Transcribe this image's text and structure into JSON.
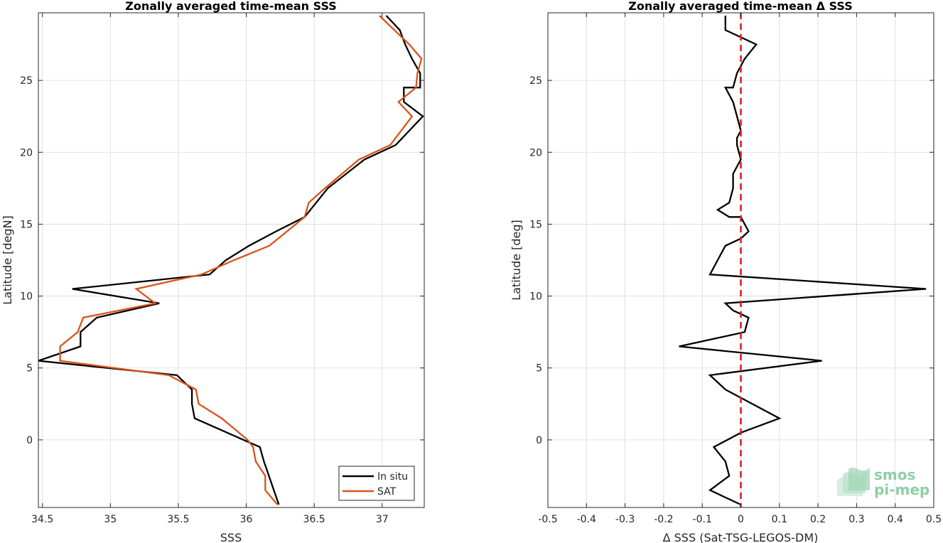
{
  "chart_data": [
    {
      "type": "line",
      "title": "Zonally averaged time-mean SSS",
      "xlabel": "SSS",
      "ylabel": "Latitude [degN]",
      "xlim": [
        34.47,
        37.31
      ],
      "ylim": [
        -4.7,
        29.7
      ],
      "xticks": [
        34.5,
        35,
        35.5,
        36,
        36.5,
        37
      ],
      "xtick_labels": [
        "34.5",
        "35",
        "35.5",
        "36",
        "36.5",
        "37"
      ],
      "yticks": [
        0,
        5,
        10,
        15,
        20,
        25
      ],
      "ytick_labels": [
        "0",
        "5",
        "10",
        "15",
        "20",
        "25"
      ],
      "grid": true,
      "legend_position": "bottom-right",
      "series": [
        {
          "name": "In situ",
          "color": "#000000",
          "points": [
            [
              37.03,
              29.5
            ],
            [
              37.13,
              28.5
            ],
            [
              37.17,
              27.5
            ],
            [
              37.22,
              26.5
            ],
            [
              37.28,
              25.5
            ],
            [
              37.28,
              24.5
            ],
            [
              37.16,
              24.5
            ],
            [
              37.16,
              23.5
            ],
            [
              37.3,
              22.5
            ],
            [
              37.1,
              20.5
            ],
            [
              36.87,
              19.5
            ],
            [
              36.6,
              17.5
            ],
            [
              36.43,
              15.5
            ],
            [
              36.22,
              14.5
            ],
            [
              36.02,
              13.5
            ],
            [
              35.85,
              12.5
            ],
            [
              35.73,
              11.5
            ],
            [
              34.72,
              10.5
            ],
            [
              35.36,
              9.5
            ],
            [
              34.9,
              8.5
            ],
            [
              34.78,
              7.5
            ],
            [
              34.78,
              6.5
            ],
            [
              34.47,
              5.5
            ],
            [
              35.49,
              4.5
            ],
            [
              35.6,
              3.5
            ],
            [
              35.6,
              2.5
            ],
            [
              35.62,
              1.5
            ],
            [
              35.98,
              0
            ],
            [
              36.1,
              -0.5
            ],
            [
              36.13,
              -1.5
            ],
            [
              36.24,
              -4.5
            ]
          ]
        },
        {
          "name": "SAT",
          "color": "#d95319",
          "points": [
            [
              36.98,
              29.5
            ],
            [
              37.09,
              28.5
            ],
            [
              37.2,
              27.5
            ],
            [
              37.29,
              26.5
            ],
            [
              37.26,
              25.5
            ],
            [
              37.25,
              24.5
            ],
            [
              37.12,
              23.5
            ],
            [
              37.22,
              22.5
            ],
            [
              37.06,
              20.5
            ],
            [
              36.83,
              19.5
            ],
            [
              36.58,
              17.5
            ],
            [
              36.46,
              16.5
            ],
            [
              36.43,
              15.5
            ],
            [
              36.17,
              13.5
            ],
            [
              35.91,
              12.5
            ],
            [
              35.67,
              11.5
            ],
            [
              35.19,
              10.5
            ],
            [
              35.33,
              9.5
            ],
            [
              34.8,
              8.5
            ],
            [
              34.76,
              7.5
            ],
            [
              34.63,
              6.5
            ],
            [
              34.63,
              5.5
            ],
            [
              35.43,
              4.5
            ],
            [
              35.63,
              3.5
            ],
            [
              35.65,
              2.5
            ],
            [
              35.82,
              1.5
            ],
            [
              36.01,
              0
            ],
            [
              36.05,
              -0.5
            ],
            [
              36.07,
              -1.5
            ],
            [
              36.14,
              -2.5
            ],
            [
              36.14,
              -3.5
            ],
            [
              36.23,
              -4.5
            ]
          ]
        }
      ]
    },
    {
      "type": "line",
      "title": "Zonally averaged time-mean Δ SSS",
      "xlabel": "Δ SSS (Sat-TSG-LEGOS-DM)",
      "ylabel": "Latitude [deg]",
      "xlim": [
        -0.5,
        0.5
      ],
      "ylim": [
        -4.7,
        29.7
      ],
      "xticks": [
        -0.5,
        -0.4,
        -0.3,
        -0.2,
        -0.1,
        0,
        0.1,
        0.2,
        0.3,
        0.4,
        0.5
      ],
      "xtick_labels": [
        "-0.5",
        "-0.4",
        "-0.3",
        "-0.2",
        "-0.1",
        "0",
        "0.1",
        "0.2",
        "0.3",
        "0.4",
        "0.5"
      ],
      "yticks": [
        0,
        5,
        10,
        15,
        20,
        25
      ],
      "ytick_labels": [
        "0",
        "5",
        "10",
        "15",
        "20",
        "25"
      ],
      "grid": true,
      "reference_line": {
        "x": 0,
        "color": "#e02020",
        "style": "dashed"
      },
      "series": [
        {
          "color": "#000000",
          "points": [
            [
              -0.04,
              29.5
            ],
            [
              -0.04,
              28.5
            ],
            [
              0.04,
              27.5
            ],
            [
              0.01,
              26.5
            ],
            [
              -0.01,
              25.5
            ],
            [
              -0.02,
              24.5
            ],
            [
              -0.04,
              24.5
            ],
            [
              -0.02,
              23.5
            ],
            [
              -0.01,
              22.5
            ],
            [
              0.0,
              21.5
            ],
            [
              -0.01,
              21.0
            ],
            [
              -0.01,
              20.5
            ],
            [
              0.0,
              19.5
            ],
            [
              -0.02,
              18.5
            ],
            [
              -0.02,
              17.5
            ],
            [
              -0.03,
              16.5
            ],
            [
              -0.06,
              16.0
            ],
            [
              -0.03,
              15.5
            ],
            [
              0.0,
              15.5
            ],
            [
              0.02,
              14.5
            ],
            [
              0.0,
              14.0
            ],
            [
              -0.04,
              13.5
            ],
            [
              -0.06,
              12.5
            ],
            [
              -0.08,
              11.5
            ],
            [
              0.48,
              10.5
            ],
            [
              -0.04,
              9.5
            ],
            [
              -0.02,
              9.0
            ],
            [
              0.02,
              8.5
            ],
            [
              0.01,
              7.5
            ],
            [
              -0.16,
              6.5
            ],
            [
              0.21,
              5.5
            ],
            [
              -0.08,
              4.5
            ],
            [
              -0.04,
              3.5
            ],
            [
              0.1,
              1.5
            ],
            [
              0.0,
              0.5
            ],
            [
              -0.07,
              -0.5
            ],
            [
              -0.04,
              -1.5
            ],
            [
              -0.03,
              -2.5
            ],
            [
              -0.08,
              -3.5
            ],
            [
              0.0,
              -4.5
            ]
          ]
        }
      ]
    }
  ],
  "legend": {
    "items": [
      {
        "label": "In situ",
        "color": "#000000"
      },
      {
        "label": "SAT",
        "color": "#d95319"
      }
    ]
  },
  "logo": {
    "line1": "smos",
    "line2": "pi-mep",
    "color": "#8ccfa4"
  }
}
